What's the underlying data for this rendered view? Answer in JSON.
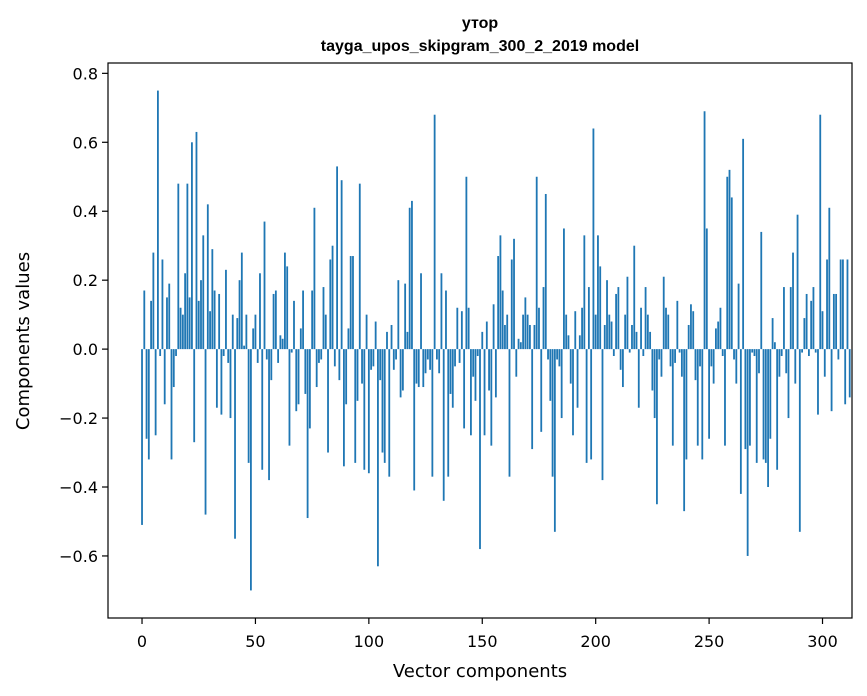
{
  "chart_data": {
    "type": "bar",
    "title": "утор",
    "subtitle": "tayga_upos_skipgram_300_2_2019 model",
    "xlabel": "Vector components",
    "ylabel": "Components values",
    "xlim": [
      -15,
      313
    ],
    "ylim": [
      -0.78,
      0.83
    ],
    "xticks": [
      0,
      50,
      100,
      150,
      200,
      250,
      300
    ],
    "yticks": [
      -0.6,
      -0.4,
      -0.2,
      0.0,
      0.2,
      0.4,
      0.6,
      0.8
    ],
    "ytick_labels": [
      "−0.6",
      "−0.4",
      "−0.2",
      "0.0",
      "0.2",
      "0.4",
      "0.6",
      "0.8"
    ],
    "xtick_labels": [
      "0",
      "50",
      "100",
      "150",
      "200",
      "250",
      "300"
    ],
    "color": "#1f77b4",
    "values": [
      -0.51,
      0.17,
      -0.26,
      -0.32,
      0.14,
      0.28,
      -0.25,
      0.75,
      -0.02,
      0.26,
      -0.16,
      0.15,
      0.19,
      -0.32,
      -0.11,
      -0.02,
      0.48,
      0.12,
      0.1,
      0.22,
      0.48,
      0.15,
      0.6,
      -0.27,
      0.63,
      0.14,
      0.2,
      0.33,
      -0.48,
      0.42,
      0.11,
      0.29,
      0.17,
      -0.17,
      0.16,
      -0.19,
      -0.02,
      0.23,
      -0.04,
      -0.2,
      0.1,
      -0.55,
      0.09,
      0.2,
      0.28,
      0.01,
      0.1,
      -0.33,
      -0.7,
      0.06,
      0.1,
      -0.04,
      0.22,
      -0.35,
      0.37,
      -0.03,
      -0.38,
      -0.09,
      0.16,
      0.17,
      -0.04,
      0.04,
      0.03,
      0.28,
      0.24,
      -0.28,
      -0.01,
      0.14,
      -0.18,
      -0.16,
      0.06,
      0.17,
      -0.13,
      -0.49,
      -0.23,
      0.17,
      0.41,
      -0.11,
      -0.04,
      -0.03,
      0.18,
      0.1,
      -0.3,
      0.26,
      0.3,
      -0.05,
      0.53,
      -0.09,
      0.49,
      -0.34,
      -0.16,
      0.06,
      0.27,
      0.27,
      -0.33,
      -0.15,
      0.48,
      -0.1,
      -0.35,
      0.1,
      -0.36,
      -0.06,
      -0.05,
      0.08,
      -0.63,
      -0.09,
      -0.3,
      -0.33,
      0.05,
      -0.37,
      0.07,
      -0.06,
      -0.03,
      0.2,
      -0.14,
      -0.12,
      0.19,
      0.05,
      0.41,
      0.43,
      -0.41,
      -0.1,
      -0.11,
      0.22,
      -0.11,
      -0.07,
      -0.03,
      -0.06,
      -0.37,
      0.68,
      -0.03,
      -0.07,
      0.22,
      -0.44,
      0.17,
      -0.37,
      -0.13,
      -0.17,
      -0.05,
      0.12,
      -0.04,
      0.11,
      -0.23,
      0.5,
      0.12,
      -0.25,
      -0.08,
      -0.15,
      -0.02,
      -0.58,
      0.05,
      -0.25,
      0.08,
      -0.12,
      -0.28,
      0.13,
      -0.14,
      0.27,
      0.33,
      0.17,
      0.07,
      0.1,
      -0.37,
      0.26,
      0.32,
      -0.08,
      0.03,
      0.02,
      0.1,
      0.15,
      0.1,
      0.07,
      -0.29,
      0.07,
      0.5,
      0.12,
      -0.24,
      0.18,
      0.45,
      -0.03,
      -0.15,
      -0.37,
      -0.53,
      -0.03,
      -0.05,
      -0.2,
      0.35,
      0.1,
      0.04,
      -0.1,
      -0.25,
      0.11,
      -0.17,
      0.04,
      0.12,
      0.33,
      -0.33,
      0.18,
      -0.32,
      0.64,
      0.1,
      0.33,
      0.24,
      -0.38,
      0.07,
      0.2,
      0.1,
      0.08,
      -0.02,
      0.16,
      0.18,
      -0.06,
      -0.11,
      0.1,
      0.21,
      -0.01,
      0.07,
      0.3,
      0.05,
      -0.17,
      0.12,
      -0.02,
      0.18,
      0.1,
      0.05,
      -0.12,
      -0.2,
      -0.45,
      -0.03,
      -0.08,
      0.21,
      0.12,
      0.1,
      -0.05,
      -0.28,
      -0.04,
      0.14,
      -0.01,
      -0.08,
      -0.47,
      -0.32,
      0.07,
      0.13,
      0.11,
      -0.09,
      -0.28,
      -0.05,
      -0.32,
      0.69,
      0.35,
      -0.26,
      -0.05,
      -0.1,
      0.06,
      0.08,
      0.12,
      -0.02,
      -0.28,
      0.5,
      0.52,
      0.44,
      -0.03,
      -0.1,
      0.19,
      -0.42,
      0.61,
      -0.29,
      -0.6,
      -0.28,
      -0.01,
      -0.02,
      -0.33,
      -0.07,
      0.34,
      -0.32,
      -0.33,
      -0.4,
      -0.26,
      0.09,
      0.02,
      -0.35,
      -0.08,
      -0.02,
      0.18,
      -0.07,
      -0.2,
      0.18,
      0.28,
      -0.1,
      0.39,
      -0.53,
      -0.01,
      0.09,
      0.16,
      -0.02,
      0.14,
      0.18,
      -0.01,
      -0.19,
      0.68,
      0.11,
      -0.08,
      0.26,
      0.41,
      -0.18,
      0.16,
      0.16,
      -0.03,
      0.26,
      0.26,
      -0.16,
      0.26,
      -0.14
    ]
  }
}
